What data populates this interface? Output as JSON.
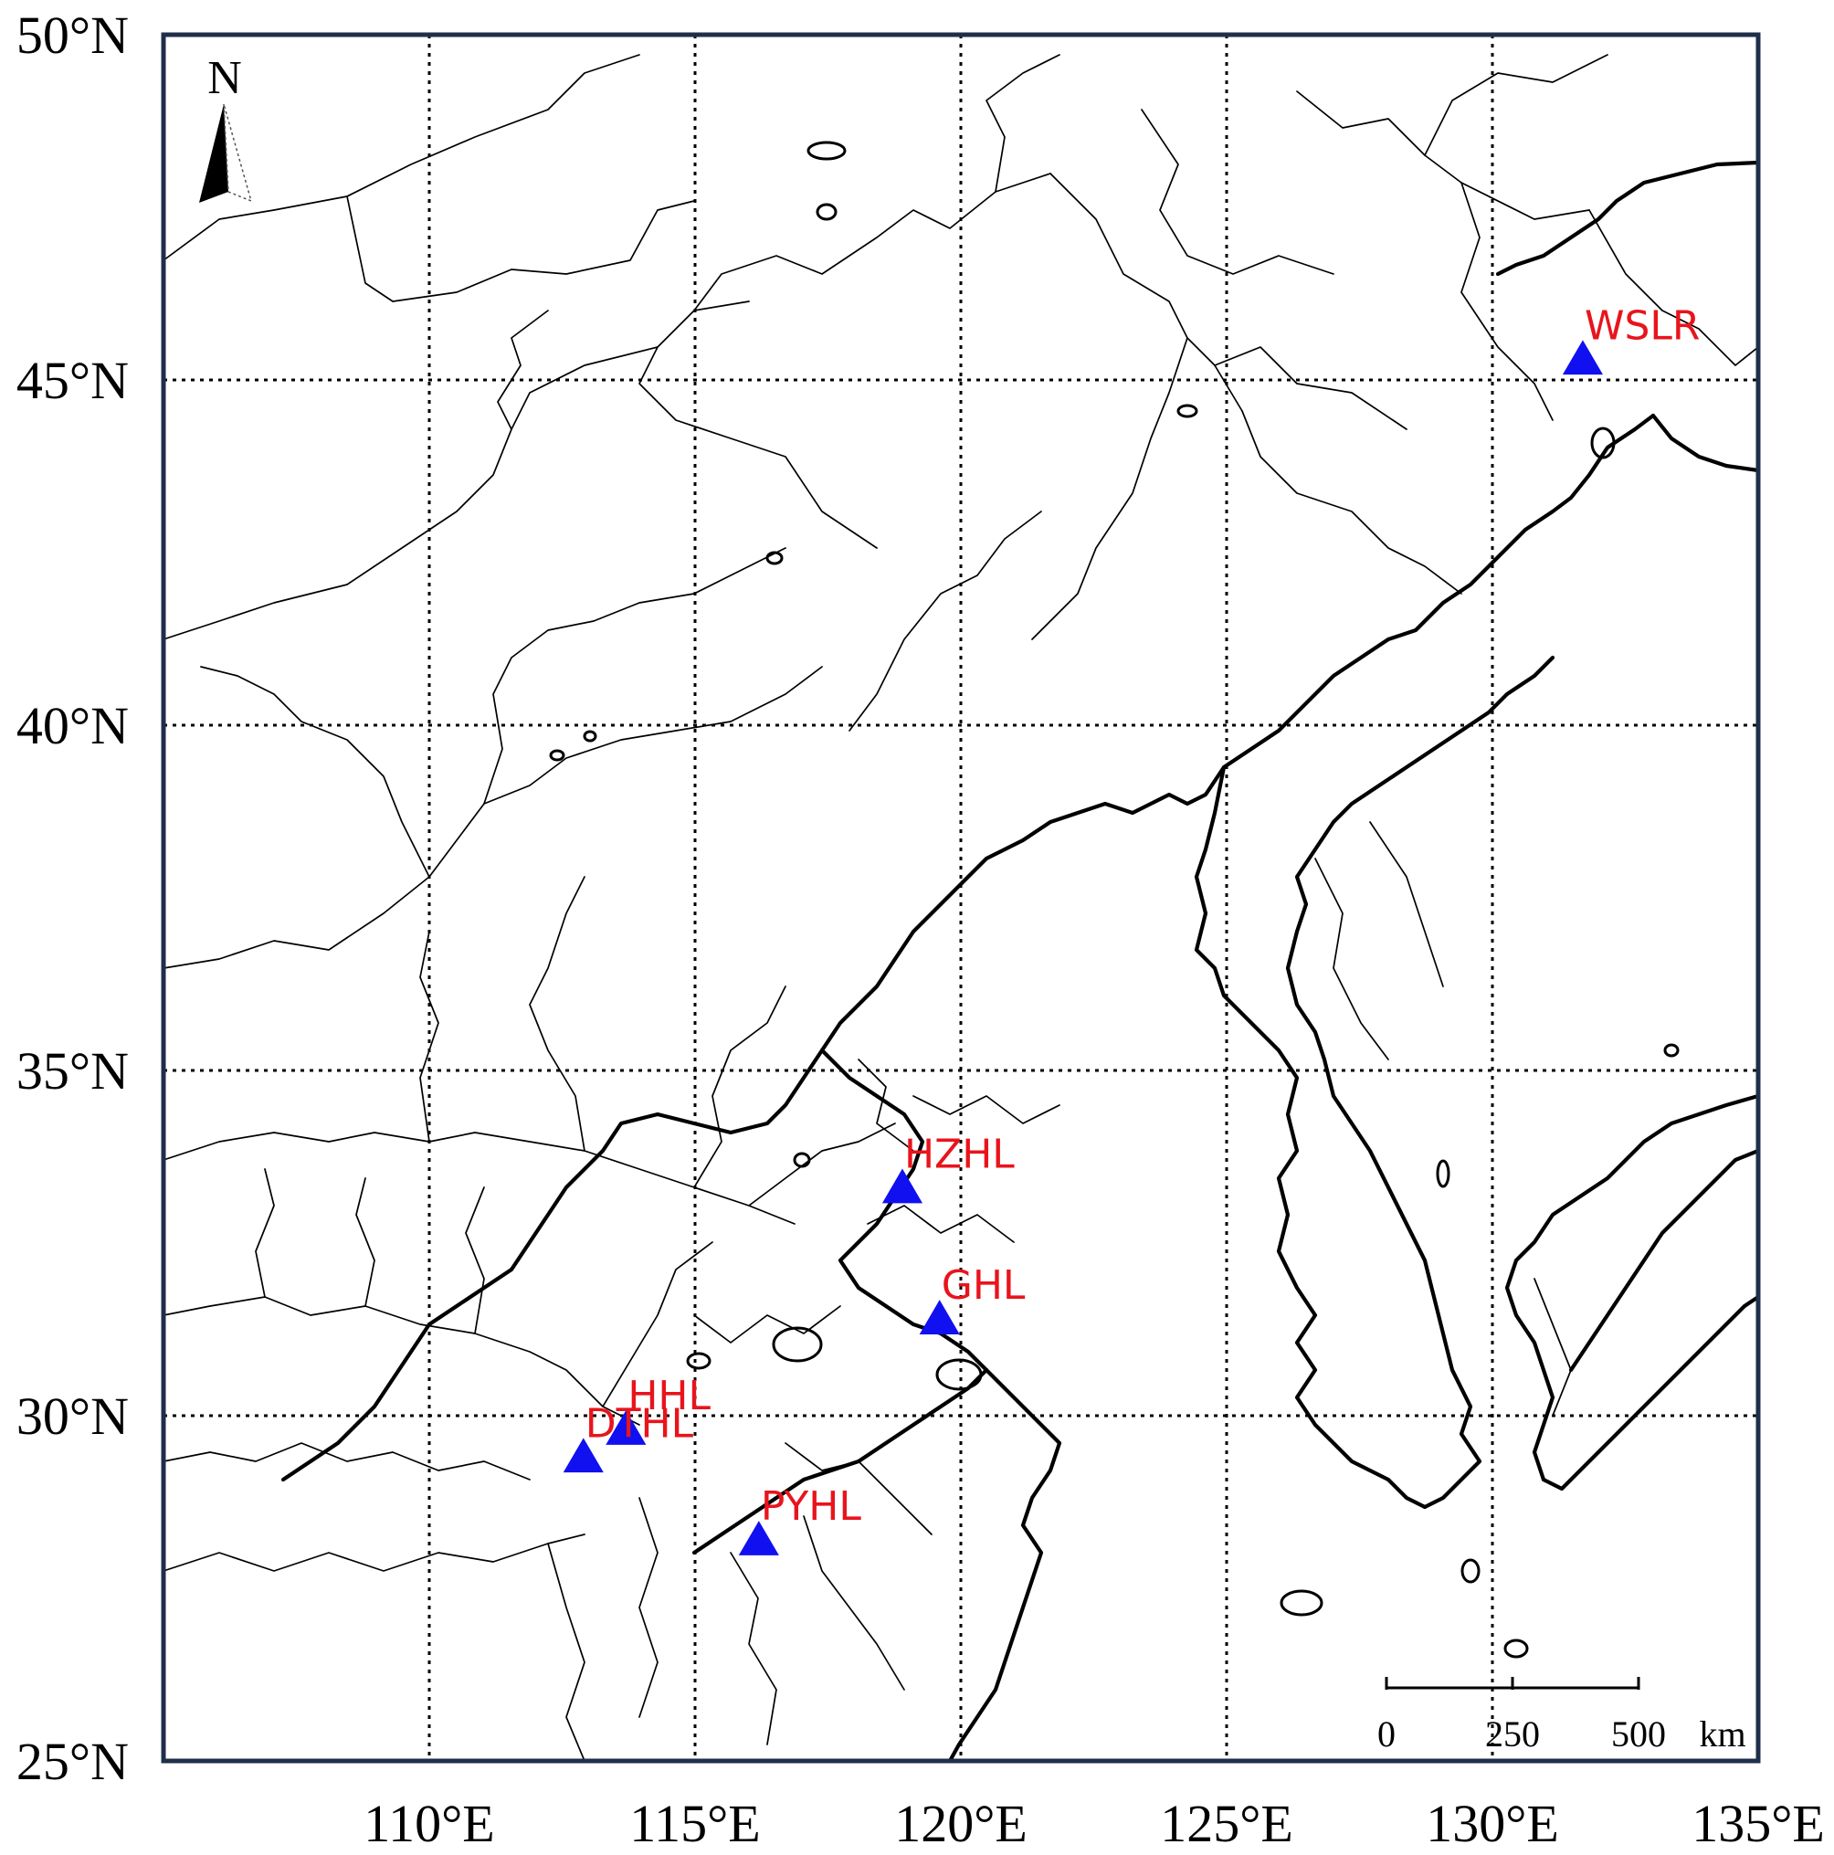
{
  "map": {
    "lon_range": [
      105,
      135
    ],
    "lat_range": [
      25,
      50
    ],
    "grid": "dotted",
    "frame_color": "#1f2f4a",
    "lat_ticks": [
      {
        "value": 50,
        "label": "50°N"
      },
      {
        "value": 45,
        "label": "45°N"
      },
      {
        "value": 40,
        "label": "40°N"
      },
      {
        "value": 35,
        "label": "35°N"
      },
      {
        "value": 30,
        "label": "30°N"
      },
      {
        "value": 25,
        "label": "25°N"
      }
    ],
    "lon_ticks": [
      {
        "value": 110,
        "label": "110°E"
      },
      {
        "value": 115,
        "label": "115°E"
      },
      {
        "value": 120,
        "label": "120°E"
      },
      {
        "value": 125,
        "label": "125°E"
      },
      {
        "value": 130,
        "label": "130°E"
      },
      {
        "value": 135,
        "label": "135°E"
      }
    ],
    "north_arrow": {
      "label": "N",
      "placement": "top-left"
    },
    "scale_bar": {
      "placement": "bottom-right",
      "ticks": [
        "0",
        "250",
        "500"
      ],
      "unit": "km"
    },
    "marker_color": "#1010f0",
    "label_color": "#e8141c",
    "sites": [
      {
        "name": "WSLR",
        "lon": 131.7,
        "lat": 45.3
      },
      {
        "name": "HZHL",
        "lon": 118.9,
        "lat": 33.3
      },
      {
        "name": "GHL",
        "lon": 119.6,
        "lat": 31.4
      },
      {
        "name": "HHL",
        "lon": 113.7,
        "lat": 29.8
      },
      {
        "name": "DTHL",
        "lon": 112.9,
        "lat": 29.4
      },
      {
        "name": "PYHL",
        "lon": 116.2,
        "lat": 28.2
      }
    ]
  }
}
